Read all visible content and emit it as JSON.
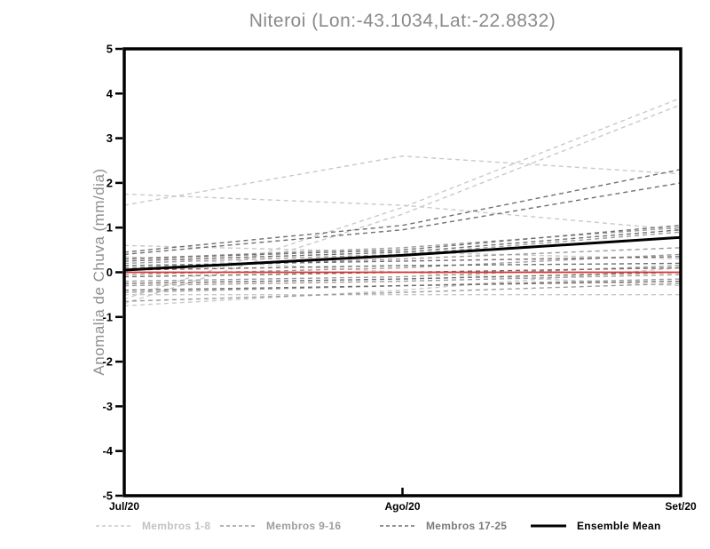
{
  "chart_data": {
    "type": "line",
    "title": "Niteroi (Lon:-43.1034,Lat:-22.8832)",
    "xlabel": "",
    "ylabel": "Anomalia de Chuva (mm/dia)",
    "x_categories": [
      "Jul/20",
      "Ago/20",
      "Set/20"
    ],
    "ylim": [
      -5,
      5
    ],
    "yticks": [
      5,
      4,
      3,
      2,
      1,
      0,
      -1,
      -2,
      -3,
      -4,
      -5
    ],
    "grid": false,
    "axis_color": "#000000",
    "zero_line": {
      "value": 0,
      "color": "#e03125"
    },
    "series": [
      {
        "name": "Membros 1-8",
        "color": "#c9c9c9",
        "style": "dashed",
        "members": [
          [
            1.75,
            1.5,
            0.95
          ],
          [
            1.5,
            2.6,
            2.2
          ],
          [
            -0.6,
            1.45,
            3.9
          ],
          [
            -0.7,
            1.3,
            3.75
          ],
          [
            0.6,
            0.45,
            0.3
          ],
          [
            -0.5,
            -0.5,
            -0.5
          ],
          [
            0.35,
            0.0,
            -0.3
          ],
          [
            -0.75,
            -0.4,
            0.1
          ]
        ]
      },
      {
        "name": "Membros 9-16",
        "color": "#9c9c9c",
        "style": "dashed",
        "members": [
          [
            0.3,
            0.55,
            1.0
          ],
          [
            0.2,
            0.4,
            0.9
          ],
          [
            0.1,
            0.3,
            0.55
          ],
          [
            -0.05,
            0.1,
            0.4
          ],
          [
            -0.2,
            -0.1,
            0.15
          ],
          [
            -0.3,
            -0.2,
            -0.05
          ],
          [
            -0.45,
            -0.3,
            -0.15
          ],
          [
            -0.65,
            -0.45,
            -0.25
          ]
        ]
      },
      {
        "name": "Membros 17-25",
        "color": "#6f6f6f",
        "style": "dashed",
        "members": [
          [
            0.45,
            1.05,
            2.3
          ],
          [
            0.4,
            0.95,
            2.0
          ],
          [
            0.3,
            0.5,
            1.05
          ],
          [
            0.25,
            0.45,
            0.95
          ],
          [
            0.15,
            0.25,
            0.35
          ],
          [
            0.05,
            0.15,
            0.2
          ],
          [
            -0.1,
            0.0,
            0.1
          ],
          [
            -0.25,
            -0.15,
            0.0
          ],
          [
            -0.4,
            -0.3,
            -0.2
          ]
        ]
      }
    ],
    "ensemble_mean": {
      "name": "Ensemble Mean",
      "color": "#000000",
      "values": [
        0.05,
        0.38,
        0.78
      ]
    },
    "legend_position": "bottom",
    "legend": [
      {
        "label": "Membros 1-8",
        "line_color": "#c9c9c9",
        "text_color": "#c3c3c3",
        "style": "dashed"
      },
      {
        "label": "Membros 9-16",
        "line_color": "#9c9c9c",
        "text_color": "#9e9e9e",
        "style": "dashed"
      },
      {
        "label": "Membros 17-25",
        "line_color": "#6f6f6f",
        "text_color": "#7a7a7a",
        "style": "dashed"
      },
      {
        "label": "Ensemble Mean",
        "line_color": "#000000",
        "text_color": "#000000",
        "style": "solid"
      }
    ]
  }
}
